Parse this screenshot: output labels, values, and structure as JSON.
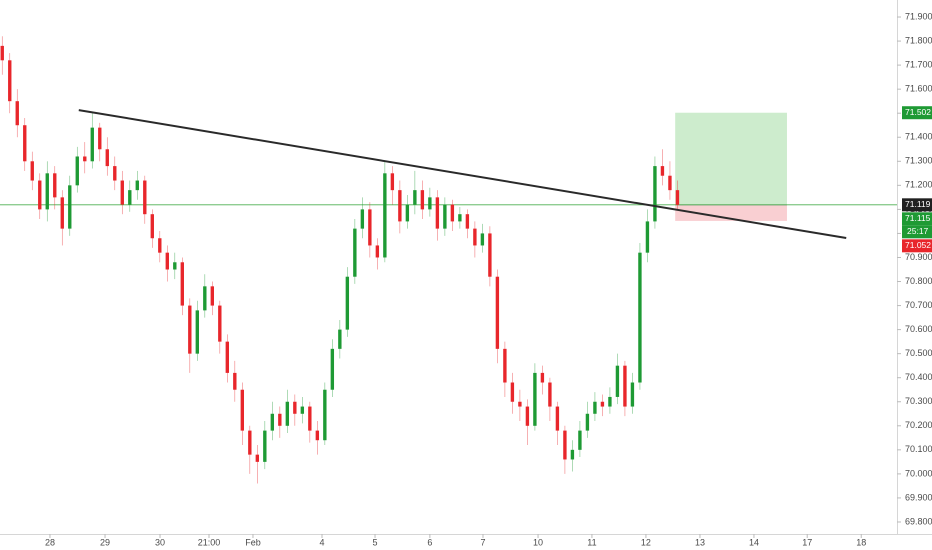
{
  "chart_data": {
    "type": "candlestick",
    "up_color": "#1e9a34",
    "down_color": "#e8262b",
    "x": [
      0,
      1,
      2,
      3,
      4,
      5,
      6,
      7,
      8,
      9,
      10,
      11,
      12,
      13,
      14,
      15,
      16,
      17,
      18,
      19,
      20,
      21,
      22,
      23,
      24,
      25,
      26,
      27,
      28,
      29,
      30,
      31,
      32,
      33,
      34,
      35,
      36,
      37,
      38,
      39,
      40,
      41,
      42,
      43,
      44,
      45,
      46,
      47,
      48,
      49,
      50,
      51,
      52,
      53,
      54,
      55,
      56,
      57,
      58,
      59,
      60,
      61,
      62,
      63,
      64,
      65,
      66,
      67,
      68,
      69,
      70,
      71,
      72,
      73,
      74,
      75,
      76,
      77,
      78,
      79,
      80,
      81,
      82,
      83,
      84,
      85,
      86,
      87,
      88,
      89,
      90
    ],
    "open": [
      71.78,
      71.72,
      71.55,
      71.45,
      71.3,
      71.22,
      71.1,
      71.25,
      71.15,
      71.02,
      71.2,
      71.32,
      71.3,
      71.44,
      71.35,
      71.28,
      71.22,
      71.12,
      71.18,
      71.22,
      71.08,
      70.98,
      70.92,
      70.85,
      70.88,
      70.7,
      70.5,
      70.68,
      70.78,
      70.7,
      70.55,
      70.42,
      70.35,
      70.18,
      70.08,
      70.05,
      70.18,
      70.25,
      70.2,
      70.3,
      70.25,
      70.28,
      70.18,
      70.14,
      70.35,
      70.52,
      70.6,
      70.82,
      71.02,
      71.1,
      70.95,
      70.9,
      71.25,
      71.18,
      71.05,
      71.12,
      71.18,
      71.1,
      71.15,
      71.02,
      71.12,
      71.05,
      71.08,
      71.02,
      70.95,
      71.0,
      70.82,
      70.52,
      70.38,
      70.3,
      70.28,
      70.2,
      70.42,
      70.38,
      70.28,
      70.18,
      70.06,
      70.1,
      70.18,
      70.25,
      70.3,
      70.28,
      70.32,
      70.45,
      70.28,
      70.38,
      70.92,
      71.05,
      71.28,
      71.24,
      71.18
    ],
    "high": [
      71.82,
      71.75,
      71.6,
      71.48,
      71.34,
      71.25,
      71.3,
      71.28,
      71.18,
      71.24,
      71.36,
      71.38,
      71.5,
      71.46,
      71.4,
      71.32,
      71.26,
      71.22,
      71.26,
      71.24,
      71.1,
      71.01,
      70.95,
      70.92,
      70.9,
      70.73,
      70.72,
      70.83,
      70.8,
      70.72,
      70.58,
      70.47,
      70.38,
      70.2,
      70.12,
      70.22,
      70.3,
      70.28,
      70.35,
      70.33,
      70.32,
      70.3,
      70.22,
      70.38,
      70.56,
      70.64,
      70.86,
      71.06,
      71.15,
      71.13,
      70.98,
      71.3,
      71.28,
      71.22,
      71.16,
      71.26,
      71.22,
      71.19,
      71.18,
      71.15,
      71.14,
      71.11,
      71.1,
      71.05,
      71.04,
      71.03,
      70.85,
      70.55,
      70.42,
      70.35,
      70.31,
      70.46,
      70.45,
      70.4,
      70.3,
      70.2,
      70.14,
      70.22,
      70.3,
      70.34,
      70.33,
      70.36,
      70.5,
      70.47,
      70.42,
      70.96,
      71.1,
      71.32,
      71.35,
      71.3,
      71.22
    ],
    "low": [
      71.66,
      71.5,
      71.4,
      71.26,
      71.18,
      71.06,
      71.05,
      71.1,
      70.95,
      70.99,
      71.17,
      71.25,
      71.27,
      71.3,
      71.24,
      71.18,
      71.08,
      71.09,
      71.14,
      71.04,
      70.94,
      70.88,
      70.8,
      70.81,
      70.66,
      70.42,
      70.47,
      70.65,
      70.66,
      70.5,
      70.38,
      70.3,
      70.12,
      70.0,
      69.96,
      70.02,
      70.14,
      70.15,
      70.17,
      70.2,
      70.21,
      70.13,
      70.08,
      70.12,
      70.32,
      70.48,
      70.57,
      70.79,
      70.98,
      70.9,
      70.85,
      70.88,
      71.12,
      71.0,
      71.02,
      71.08,
      71.06,
      71.07,
      70.97,
      70.99,
      71.01,
      71.02,
      70.98,
      70.9,
      70.92,
      70.78,
      70.46,
      70.32,
      70.25,
      70.22,
      70.12,
      70.18,
      70.33,
      70.22,
      70.12,
      70.0,
      70.01,
      70.07,
      70.15,
      70.22,
      70.24,
      70.25,
      70.29,
      70.24,
      70.25,
      70.35,
      70.88,
      71.02,
      71.2,
      71.14,
      71.1
    ],
    "close": [
      71.72,
      71.55,
      71.45,
      71.3,
      71.22,
      71.1,
      71.25,
      71.15,
      71.02,
      71.2,
      71.32,
      71.3,
      71.44,
      71.35,
      71.28,
      71.22,
      71.12,
      71.18,
      71.22,
      71.08,
      70.98,
      70.92,
      70.85,
      70.88,
      70.7,
      70.5,
      70.68,
      70.78,
      70.7,
      70.55,
      70.42,
      70.35,
      70.18,
      70.08,
      70.05,
      70.18,
      70.25,
      70.2,
      70.3,
      70.25,
      70.28,
      70.18,
      70.14,
      70.35,
      70.52,
      70.6,
      70.82,
      71.02,
      71.1,
      70.95,
      70.9,
      71.25,
      71.18,
      71.05,
      71.12,
      71.18,
      71.1,
      71.15,
      71.02,
      71.12,
      71.05,
      71.08,
      71.02,
      70.95,
      71.0,
      70.82,
      70.52,
      70.38,
      70.3,
      70.28,
      70.2,
      70.42,
      70.38,
      70.28,
      70.18,
      70.06,
      70.1,
      70.18,
      70.25,
      70.3,
      70.28,
      70.32,
      70.45,
      70.28,
      70.38,
      70.92,
      71.05,
      71.28,
      71.24,
      71.18,
      71.119
    ],
    "xlim": [
      -0.3,
      119
    ],
    "xticks": [
      {
        "value": 6.36,
        "label": "28"
      },
      {
        "value": 13.7,
        "label": "29"
      },
      {
        "value": 21.03,
        "label": "30"
      },
      {
        "value": 27.56,
        "label": "21:00"
      },
      {
        "value": 33.42,
        "label": "Feb"
      },
      {
        "value": 42.62,
        "label": "4"
      },
      {
        "value": 49.69,
        "label": "5"
      },
      {
        "value": 57.0,
        "label": "6"
      },
      {
        "value": 64.08,
        "label": "7"
      },
      {
        "value": 71.42,
        "label": "10"
      },
      {
        "value": 78.6,
        "label": "11"
      },
      {
        "value": 85.8,
        "label": "12"
      },
      {
        "value": 93.0,
        "label": "13"
      },
      {
        "value": 100.2,
        "label": "14"
      },
      {
        "value": 107.3,
        "label": "17"
      },
      {
        "value": 114.5,
        "label": "18"
      }
    ],
    "ylim": [
      69.75,
      71.95
    ],
    "yticks": [
      {
        "value": 69.8,
        "label": "69.800"
      },
      {
        "value": 69.9,
        "label": "69.900"
      },
      {
        "value": 70.0,
        "label": "70.000"
      },
      {
        "value": 70.1,
        "label": "70.100"
      },
      {
        "value": 70.2,
        "label": "70.200"
      },
      {
        "value": 70.3,
        "label": "70.300"
      },
      {
        "value": 70.4,
        "label": "70.400"
      },
      {
        "value": 70.5,
        "label": "70.500"
      },
      {
        "value": 70.6,
        "label": "70.600"
      },
      {
        "value": 70.7,
        "label": "70.700"
      },
      {
        "value": 70.8,
        "label": "70.800"
      },
      {
        "value": 70.9,
        "label": "70.900"
      },
      {
        "value": 71.0,
        "label": "71.000"
      },
      {
        "value": 71.1,
        "label": "71.100"
      },
      {
        "value": 71.2,
        "label": "71.200"
      },
      {
        "value": 71.3,
        "label": "71.300"
      },
      {
        "value": 71.4,
        "label": "71.400"
      },
      {
        "value": 71.5,
        "label": "71.500"
      },
      {
        "value": 71.6,
        "label": "71.600"
      },
      {
        "value": 71.7,
        "label": "71.700"
      },
      {
        "value": 71.8,
        "label": "71.800"
      },
      {
        "value": 71.9,
        "label": "71.900"
      }
    ],
    "grid": false,
    "trend_line": {
      "x": [
        10.2,
        112.5
      ],
      "y": [
        71.513,
        70.981
      ],
      "color": "#2a2a2a"
    },
    "position": {
      "x_start": 89.7,
      "x_end": 104.6,
      "target": 71.502,
      "entry": 71.119,
      "stop": 71.052,
      "profit_color": "#cdeccd",
      "loss_color": "#f9cfd2"
    },
    "price_line": {
      "value": 71.119,
      "color": "#4caf50"
    },
    "price_markers": [
      {
        "value": 71.502,
        "color": "#1e9a34"
      },
      {
        "value": 71.119,
        "color": "#202020"
      },
      {
        "value": 71.115,
        "color": "#1e9a34",
        "countdown": "25:17"
      },
      {
        "value": 71.052,
        "color": "#e8262b"
      }
    ]
  }
}
